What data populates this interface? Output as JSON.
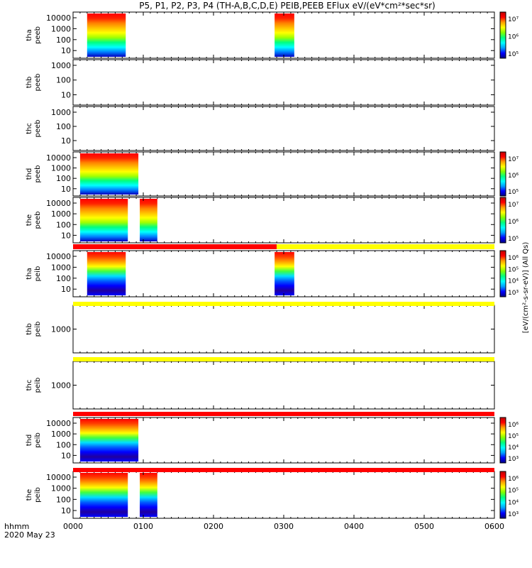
{
  "title": "P5, P1, P2, P3, P4 (TH-A,B,C,D,E) PEIB,PEEB EFlux eV/(eV*cm²*sec*sr)",
  "footer": {
    "line1": "hhmm",
    "line2": "2020 May 23"
  },
  "colorbar_labels": {
    "units_main": "[eV/(cm²-s-sr-eV)] (All Qs)",
    "units_simple": "[eV/(cm²-s-sr-eV)]",
    "units_overlap": "[eV/(cm²-s-sr-eV)] (All Qs)"
  },
  "chart_data": {
    "type": "heatmap",
    "x_axis": {
      "label": "hhmm",
      "date": "2020 May 23",
      "ticks": [
        "0000",
        "0100",
        "0200",
        "0300",
        "0400",
        "0500",
        "0600"
      ],
      "range_hours": [
        0,
        6
      ]
    },
    "panels": [
      {
        "id": "tha-peeb",
        "ylabel": [
          "tha",
          "peeb"
        ],
        "yticks": [
          "10000",
          "1000",
          "100",
          "10"
        ],
        "ylog": true,
        "coverage_hours": [
          [
            0.2,
            0.75
          ],
          [
            2.87,
            3.15
          ]
        ],
        "colorbar": {
          "ticks": [
            "10⁷",
            "10⁶",
            "10⁵"
          ]
        },
        "scale": "e"
      },
      {
        "id": "thb-peeb",
        "ylabel": [
          "thb",
          "peeb"
        ],
        "yticks": [
          "1000",
          "100",
          "10"
        ],
        "ylog": true,
        "coverage_hours": []
      },
      {
        "id": "thc-peeb",
        "ylabel": [
          "thc",
          "peeb"
        ],
        "yticks": [
          "1000",
          "100",
          "10"
        ],
        "ylog": true,
        "coverage_hours": []
      },
      {
        "id": "thd-peeb",
        "ylabel": [
          "thd",
          "peeb"
        ],
        "yticks": [
          "10000",
          "1000",
          "100",
          "10"
        ],
        "ylog": true,
        "coverage_hours": [
          [
            0.1,
            0.93
          ]
        ],
        "colorbar": {
          "ticks": [
            "10⁷",
            "10⁶",
            "10⁵"
          ]
        },
        "scale": "e"
      },
      {
        "id": "the-peeb",
        "ylabel": [
          "the",
          "peeb"
        ],
        "yticks": [
          "10000",
          "1000",
          "100",
          "10"
        ],
        "ylog": true,
        "coverage_hours": [
          [
            0.1,
            0.78
          ],
          [
            0.95,
            1.2
          ]
        ],
        "colorbar": {
          "ticks": [
            "10⁷",
            "10⁶",
            "10⁵"
          ]
        },
        "scale": "e"
      },
      {
        "id": "tha-peib",
        "ylabel": [
          "tha",
          "peib"
        ],
        "yticks": [
          "10000",
          "1000",
          "100",
          "10"
        ],
        "ylog": true,
        "coverage_hours": [
          [
            0.2,
            0.75
          ],
          [
            2.87,
            3.15
          ]
        ],
        "colorbar": {
          "ticks": [
            "10⁶",
            "10⁵",
            "10⁴",
            "10³"
          ]
        },
        "scale": "i"
      },
      {
        "id": "thb-peib",
        "ylabel": [
          "thb",
          "peib"
        ],
        "yticks": [
          "1000"
        ],
        "ylog": true,
        "coverage_hours": []
      },
      {
        "id": "thc-peib",
        "ylabel": [
          "thc",
          "peib"
        ],
        "yticks": [
          "1000"
        ],
        "ylog": true,
        "coverage_hours": []
      },
      {
        "id": "thd-peib",
        "ylabel": [
          "thd",
          "peib"
        ],
        "yticks": [
          "10000",
          "1000",
          "100",
          "10"
        ],
        "ylog": true,
        "coverage_hours": [
          [
            0.1,
            0.93
          ]
        ],
        "colorbar": {
          "ticks": [
            "10⁶",
            "10⁵",
            "10⁴",
            "10³"
          ]
        },
        "scale": "i"
      },
      {
        "id": "the-peib",
        "ylabel": [
          "the",
          "peib"
        ],
        "yticks": [
          "10000",
          "1000",
          "100",
          "10"
        ],
        "ylog": true,
        "coverage_hours": [
          [
            0.1,
            0.78
          ],
          [
            0.95,
            1.2
          ]
        ],
        "colorbar": {
          "ticks": [
            "10⁶",
            "10⁵",
            "10⁴",
            "10³"
          ]
        },
        "scale": "i"
      }
    ],
    "state_bars": [
      {
        "after_panel": "the-peeb",
        "segments": [
          {
            "from": 0,
            "to": 2.9,
            "color": "#ff0000"
          },
          {
            "from": 2.9,
            "to": 6,
            "color": "#ffff00"
          }
        ]
      },
      {
        "after_panel": "tha-peib",
        "segments": [
          {
            "from": 0,
            "to": 6,
            "color": "#ffff00"
          }
        ]
      },
      {
        "after_panel": "thb-peib",
        "segments": [
          {
            "from": 0,
            "to": 6,
            "color": "#ffff00"
          }
        ]
      },
      {
        "after_panel": "thc-peib",
        "segments": [
          {
            "from": 0,
            "to": 6,
            "color": "#ff0000"
          }
        ]
      },
      {
        "after_panel": "thd-peib",
        "segments": [
          {
            "from": 0,
            "to": 6,
            "color": "#ff0000"
          }
        ]
      }
    ],
    "colors": {
      "colorbar": [
        "#000080",
        "#0000ff",
        "#00a0ff",
        "#00ffff",
        "#00ff80",
        "#80ff00",
        "#ffff00",
        "#ffa000",
        "#ff0000",
        "#c00000"
      ]
    }
  }
}
